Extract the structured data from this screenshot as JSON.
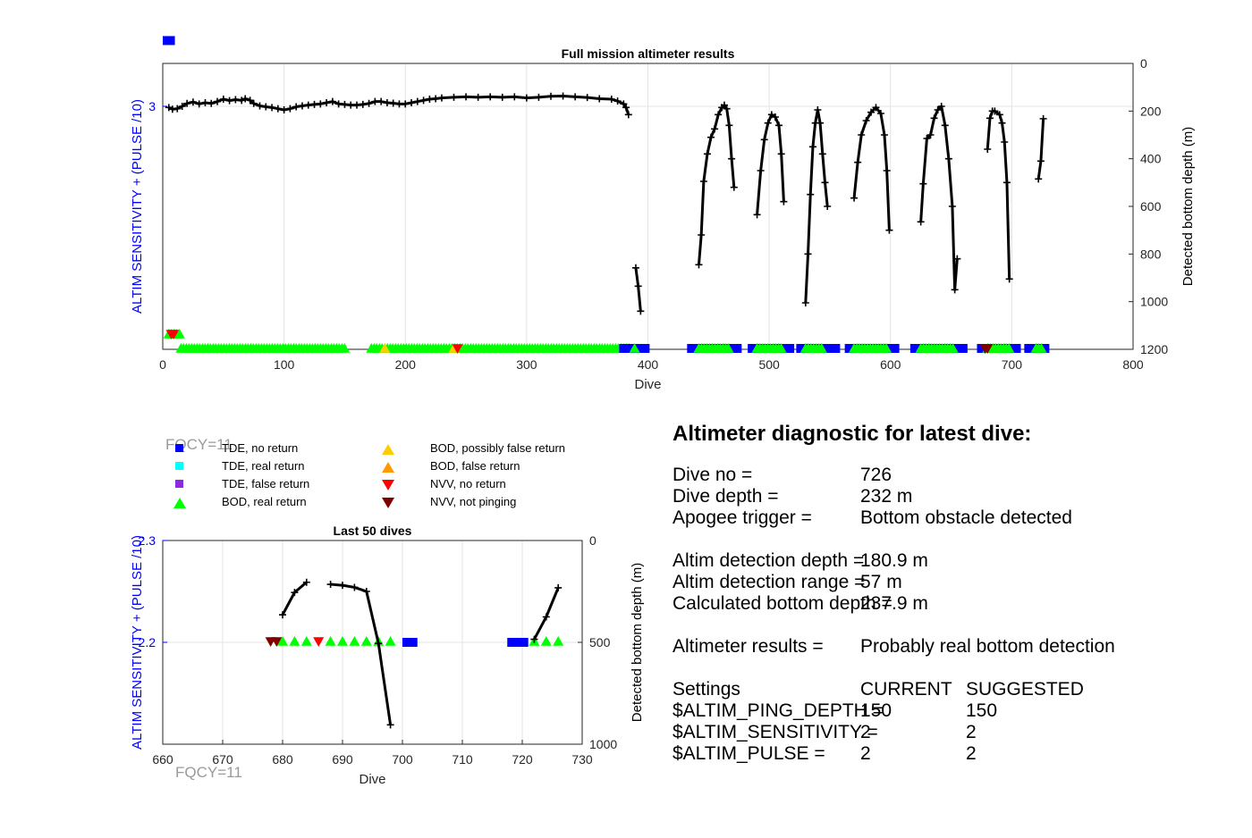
{
  "colors": {
    "blue_tde_no_return": "#0000ff",
    "cyan_tde_real": "#00ffff",
    "purple_tde_false": "#8a2be2",
    "green_bod_real": "#00ff00",
    "yellow_bod_possibly_false": "#ffcc00",
    "orange_bod_false": "#ff9900",
    "red_nvv_no_return": "#ff0000",
    "darkred_nvv_not_pinging": "#800000",
    "left_axis": "#0000ff",
    "depth_line": "#000000",
    "fqcy": "#9a9a9a"
  },
  "fqcy_label": "FQCY=11",
  "legend": {
    "items": [
      {
        "marker": "square",
        "color": "#0000ff",
        "label": "TDE, no return"
      },
      {
        "marker": "square",
        "color": "#00ffff",
        "label": "TDE, real return"
      },
      {
        "marker": "square",
        "color": "#8a2be2",
        "label": "TDE, false return"
      },
      {
        "marker": "triangle-up",
        "color": "#00ff00",
        "label": "BOD, real return"
      },
      {
        "marker": "triangle-up",
        "color": "#ffcc00",
        "label": "BOD, possibly false return"
      },
      {
        "marker": "triangle-up",
        "color": "#ff9900",
        "label": "BOD, false return"
      },
      {
        "marker": "triangle-down",
        "color": "#ff0000",
        "label": "NVV, no return"
      },
      {
        "marker": "triangle-down",
        "color": "#800000",
        "label": "NVV, not pinging"
      }
    ]
  },
  "diagnostic": {
    "title": "Altimeter diagnostic for latest dive:",
    "rows1": [
      {
        "label": "Dive no =",
        "value": "726"
      },
      {
        "label": "Dive depth =",
        "value": "232 m"
      },
      {
        "label": "Apogee trigger =",
        "value": "Bottom obstacle detected"
      }
    ],
    "rows2": [
      {
        "label": "Altim detection depth =",
        "value": "180.9 m"
      },
      {
        "label": "Altim detection range =",
        "value": "57 m"
      },
      {
        "label": "Calculated bottom depth =",
        "value": "237.9 m"
      }
    ],
    "results_label": "Altimeter results =",
    "results_value": "Probably real bottom detection",
    "settings": {
      "header": [
        "Settings",
        "CURRENT",
        "SUGGESTED"
      ],
      "rows": [
        {
          "name": "$ALTIM_PING_DEPTH =",
          "current": "150",
          "suggested": "150"
        },
        {
          "name": "$ALTIM_SENSITIVITY =",
          "current": "2",
          "suggested": "2"
        },
        {
          "name": "$ALTIM_PULSE =",
          "current": "2",
          "suggested": "2"
        }
      ]
    }
  },
  "chart_data": [
    {
      "type": "line",
      "title": "Full mission altimeter results",
      "xlabel": "Dive",
      "ylabel": "ALTIM SENSITIVITY + (PULSE /10)",
      "y2label": "Detected bottom depth (m)",
      "xlim": [
        0,
        800
      ],
      "xticks": [
        0,
        100,
        200,
        300,
        400,
        500,
        600,
        700,
        800
      ],
      "ylim": [
        2.15,
        3.15
      ],
      "yticks": [
        3
      ],
      "y2lim": [
        0,
        1200
      ],
      "y2ticks": [
        0,
        200,
        400,
        600,
        800,
        1000,
        1200
      ],
      "y2_reversed": true,
      "grid": true,
      "settings_series": [
        {
          "x": [
            0,
            10
          ],
          "y": [
            3.23,
            3.23
          ]
        }
      ],
      "depth_segments": [
        [
          [
            5,
            185
          ],
          [
            8,
            192
          ],
          [
            12,
            190
          ],
          [
            16,
            180
          ],
          [
            20,
            168
          ],
          [
            25,
            162
          ],
          [
            30,
            170
          ],
          [
            35,
            165
          ],
          [
            40,
            168
          ],
          [
            45,
            160
          ],
          [
            50,
            150
          ],
          [
            55,
            156
          ],
          [
            60,
            152
          ],
          [
            65,
            155
          ],
          [
            68,
            148
          ],
          [
            72,
            155
          ],
          [
            75,
            168
          ],
          [
            80,
            178
          ],
          [
            85,
            182
          ],
          [
            90,
            185
          ],
          [
            95,
            190
          ],
          [
            100,
            195
          ],
          [
            105,
            190
          ],
          [
            110,
            182
          ],
          [
            115,
            178
          ],
          [
            120,
            175
          ],
          [
            125,
            172
          ],
          [
            130,
            170
          ],
          [
            135,
            165
          ],
          [
            140,
            160
          ],
          [
            145,
            170
          ],
          [
            150,
            172
          ],
          [
            155,
            175
          ],
          [
            160,
            175
          ],
          [
            165,
            172
          ],
          [
            170,
            168
          ],
          [
            175,
            160
          ],
          [
            180,
            160
          ],
          [
            185,
            165
          ],
          [
            190,
            167
          ],
          [
            195,
            170
          ],
          [
            200,
            170
          ],
          [
            205,
            165
          ],
          [
            210,
            160
          ],
          [
            215,
            155
          ],
          [
            220,
            150
          ],
          [
            225,
            148
          ],
          [
            230,
            145
          ],
          [
            240,
            142
          ],
          [
            250,
            140
          ],
          [
            260,
            142
          ],
          [
            270,
            140
          ],
          [
            280,
            142
          ],
          [
            290,
            140
          ],
          [
            300,
            145
          ],
          [
            310,
            142
          ],
          [
            320,
            138
          ],
          [
            330,
            137
          ],
          [
            340,
            140
          ],
          [
            350,
            143
          ],
          [
            360,
            148
          ],
          [
            370,
            150
          ],
          [
            375,
            158
          ],
          [
            380,
            170
          ],
          [
            382,
            185
          ],
          [
            384,
            215
          ]
        ],
        [
          [
            390,
            858
          ],
          [
            392,
            935
          ],
          [
            394,
            1040
          ]
        ],
        [
          [
            442,
            845
          ],
          [
            444,
            720
          ],
          [
            446,
            495
          ],
          [
            449,
            380
          ],
          [
            452,
            310
          ],
          [
            455,
            275
          ],
          [
            458,
            215
          ],
          [
            461,
            185
          ],
          [
            463,
            175
          ],
          [
            465,
            190
          ],
          [
            467,
            260
          ],
          [
            469,
            400
          ],
          [
            471,
            520
          ]
        ],
        [
          [
            490,
            635
          ],
          [
            493,
            450
          ],
          [
            496,
            320
          ],
          [
            499,
            250
          ],
          [
            502,
            215
          ],
          [
            505,
            225
          ],
          [
            508,
            260
          ],
          [
            510,
            380
          ],
          [
            512,
            580
          ]
        ],
        [
          [
            530,
            1005
          ],
          [
            532,
            800
          ],
          [
            534,
            550
          ],
          [
            536,
            350
          ],
          [
            538,
            250
          ],
          [
            540,
            195
          ],
          [
            542,
            250
          ],
          [
            544,
            380
          ],
          [
            546,
            500
          ],
          [
            548,
            600
          ]
        ],
        [
          [
            570,
            565
          ],
          [
            573,
            415
          ],
          [
            576,
            300
          ],
          [
            580,
            240
          ],
          [
            584,
            205
          ],
          [
            588,
            185
          ],
          [
            592,
            210
          ],
          [
            595,
            300
          ],
          [
            597,
            450
          ],
          [
            599,
            700
          ]
        ],
        [
          [
            625,
            665
          ],
          [
            627,
            505
          ],
          [
            630,
            315
          ],
          [
            633,
            300
          ],
          [
            636,
            230
          ],
          [
            639,
            195
          ],
          [
            642,
            180
          ],
          [
            645,
            260
          ],
          [
            648,
            400
          ],
          [
            651,
            600
          ],
          [
            653,
            950
          ],
          [
            655,
            820
          ]
        ],
        [
          [
            680,
            360
          ],
          [
            682,
            230
          ],
          [
            684,
            200
          ],
          [
            686,
            200
          ],
          [
            690,
            215
          ],
          [
            692,
            250
          ],
          [
            694,
            330
          ],
          [
            696,
            500
          ],
          [
            698,
            905
          ]
        ],
        [
          [
            722,
            485
          ],
          [
            724,
            410
          ],
          [
            726,
            232
          ]
        ]
      ],
      "markers": [
        {
          "type": "triangle-up",
          "color": "#00ff00",
          "x_range": [
            5,
            16
          ],
          "y": 2.2
        },
        {
          "type": "triangle-down",
          "color": "#ff0000",
          "x": [
            7,
            9
          ],
          "y": 2.2
        },
        {
          "type": "triangle-up",
          "color": "#00ff00",
          "x_range": [
            15,
            150
          ],
          "y": 2.15
        },
        {
          "type": "triangle-up",
          "color": "#00ff00",
          "x_range": [
            172,
            385
          ],
          "y": 2.15
        },
        {
          "type": "triangle-up",
          "color": "#ffcc00",
          "x": [
            183,
            240
          ],
          "y": 2.15
        },
        {
          "type": "triangle-down",
          "color": "#ff0000",
          "x": [
            243
          ],
          "y": 2.15
        },
        {
          "type": "square",
          "color": "#0000ff",
          "x_range": [
            380,
            398
          ],
          "y": 2.15
        },
        {
          "type": "triangle-up",
          "color": "#00ff00",
          "x_range": [
            389,
            391
          ],
          "y": 2.15
        },
        {
          "type": "square",
          "color": "#0000ff",
          "x_range": [
            436,
            475
          ],
          "y": 2.15
        },
        {
          "type": "triangle-up",
          "color": "#00ff00",
          "x_range": [
            442,
            467
          ],
          "y": 2.15
        },
        {
          "type": "square",
          "color": "#0000ff",
          "x_range": [
            486,
            518
          ],
          "y": 2.15
        },
        {
          "type": "triangle-up",
          "color": "#00ff00",
          "x_range": [
            490,
            510
          ],
          "y": 2.15
        },
        {
          "type": "square",
          "color": "#0000ff",
          "x_range": [
            526,
            555
          ],
          "y": 2.15
        },
        {
          "type": "triangle-up",
          "color": "#00ff00",
          "x_range": [
            530,
            545
          ],
          "y": 2.15
        },
        {
          "type": "square",
          "color": "#0000ff",
          "x_range": [
            566,
            605
          ],
          "y": 2.15
        },
        {
          "type": "triangle-up",
          "color": "#00ff00",
          "x_range": [
            570,
            598
          ],
          "y": 2.15
        },
        {
          "type": "square",
          "color": "#0000ff",
          "x_range": [
            620,
            660
          ],
          "y": 2.15
        },
        {
          "type": "triangle-up",
          "color": "#00ff00",
          "x_range": [
            625,
            652
          ],
          "y": 2.15
        },
        {
          "type": "square",
          "color": "#0000ff",
          "x_range": [
            675,
            705
          ],
          "y": 2.15
        },
        {
          "type": "triangle-up",
          "color": "#00ff00",
          "x_range": [
            680,
            698
          ],
          "y": 2.15
        },
        {
          "type": "triangle-down",
          "color": "#800000",
          "x": [
            678,
            680
          ],
          "y": 2.15
        },
        {
          "type": "square",
          "color": "#0000ff",
          "x_range": [
            714,
            728
          ],
          "y": 2.15
        },
        {
          "type": "triangle-up",
          "color": "#00ff00",
          "x_range": [
            720,
            726
          ],
          "y": 2.15
        }
      ]
    },
    {
      "type": "line",
      "title": "Last 50 dives",
      "xlabel": "Dive",
      "ylabel": "ALTIM SENSITIVITY + (PULSE /10)",
      "y2label": "Detected bottom depth (m)",
      "xlim": [
        660,
        730
      ],
      "xticks": [
        660,
        670,
        680,
        690,
        700,
        710,
        720,
        730
      ],
      "ylim": [
        2.1,
        2.3
      ],
      "yticks": [
        2.2,
        2.3
      ],
      "y2lim": [
        0,
        1000
      ],
      "y2ticks": [
        0,
        500,
        1000
      ],
      "y2_reversed": true,
      "grid": true,
      "settings_series": [
        {
          "x": [
            700,
            702.5
          ],
          "y": [
            2.2,
            2.2
          ]
        },
        {
          "x": [
            717.5,
            721
          ],
          "y": [
            2.2,
            2.2
          ]
        }
      ],
      "depth_segments": [
        [
          [
            680,
            365
          ],
          [
            682,
            255
          ],
          [
            684,
            205
          ]
        ],
        [
          [
            688,
            215
          ],
          [
            690,
            220
          ],
          [
            692,
            230
          ],
          [
            694,
            250
          ],
          [
            696,
            505
          ],
          [
            698,
            905
          ]
        ],
        [
          [
            722,
            485
          ],
          [
            724,
            375
          ],
          [
            726,
            232
          ]
        ]
      ],
      "markers": [
        {
          "type": "triangle-up",
          "color": "#00ff00",
          "x": [
            680,
            682,
            684,
            688,
            690,
            692,
            694,
            696,
            698,
            722,
            724,
            726
          ],
          "y": 2.2
        },
        {
          "type": "triangle-down",
          "color": "#800000",
          "x": [
            678,
            679
          ],
          "y": 2.2
        },
        {
          "type": "triangle-down",
          "color": "#ff0000",
          "x": [
            686
          ],
          "y": 2.2
        }
      ]
    }
  ]
}
